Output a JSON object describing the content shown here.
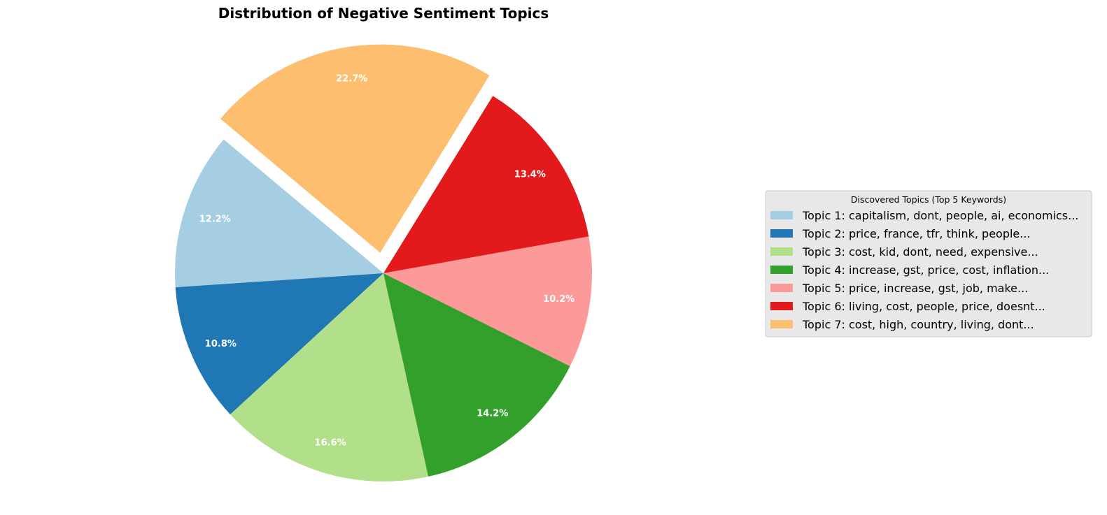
{
  "chart_data": {
    "type": "pie",
    "title": "Distribution of Negative Sentiment Topics",
    "start_angle_deg": 140,
    "direction": "counterclockwise",
    "exploded_index": 6,
    "slices": [
      {
        "label": "Topic 1: capitalism, dont, people, ai, economics...",
        "value": 12.2,
        "pct_label": "12.2%",
        "color": "#a6cee3"
      },
      {
        "label": "Topic 2: price, france, tfr, think, people...",
        "value": 10.8,
        "pct_label": "10.8%",
        "color": "#1f78b4"
      },
      {
        "label": "Topic 3: cost, kid, dont, need, expensive...",
        "value": 16.6,
        "pct_label": "16.6%",
        "color": "#b2df8a"
      },
      {
        "label": "Topic 4: increase, gst, price, cost, inflation...",
        "value": 14.2,
        "pct_label": "14.2%",
        "color": "#33a02c"
      },
      {
        "label": "Topic 5: price, increase, gst, job, make...",
        "value": 10.2,
        "pct_label": "10.2%",
        "color": "#fb9a99"
      },
      {
        "label": "Topic 6: living, cost, people, price, doesnt...",
        "value": 13.4,
        "pct_label": "13.4%",
        "color": "#e31a1c"
      },
      {
        "label": "Topic 7: cost, high, country, living, dont...",
        "value": 22.7,
        "pct_label": "22.7%",
        "color": "#fdbf6f"
      }
    ],
    "legend": {
      "title": "Discovered Topics (Top 5 Keywords)",
      "placement": "center-right"
    }
  }
}
